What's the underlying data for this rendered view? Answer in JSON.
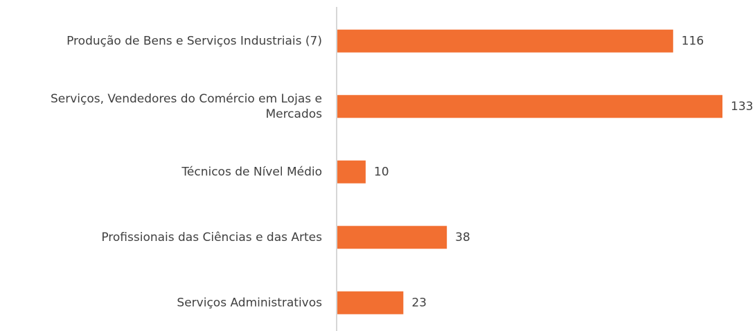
{
  "chart_data": {
    "type": "bar",
    "orientation": "horizontal",
    "categories": [
      "Produção de Bens e Serviços Industriais (7)",
      "Serviços, Vendedores do Comércio em Lojas e Mercados",
      "Técnicos de Nível Médio",
      "Profissionais das Ciências e das Artes",
      "Serviços Administrativos"
    ],
    "values": [
      116,
      133,
      10,
      38,
      23
    ],
    "color": "#f26f31"
  }
}
